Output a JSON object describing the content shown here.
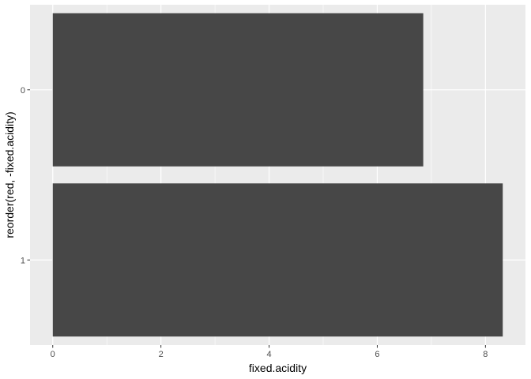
{
  "chart_data": {
    "type": "bar",
    "orientation": "horizontal",
    "categories": [
      "0",
      "1"
    ],
    "values": [
      6.85,
      8.32
    ],
    "xlabel": "fixed.acidity",
    "ylabel": "reorder(red, -fixed.acidity)",
    "xlim": [
      -0.42,
      8.74
    ],
    "xticks": [
      0,
      2,
      4,
      6,
      8
    ],
    "grid": true,
    "legend": "none",
    "colors": {
      "panel": "#ebebeb",
      "grid_major": "#ffffff",
      "bar": "#474747",
      "tick_text": "#4d4d4d",
      "tick_mark": "#333333"
    }
  }
}
